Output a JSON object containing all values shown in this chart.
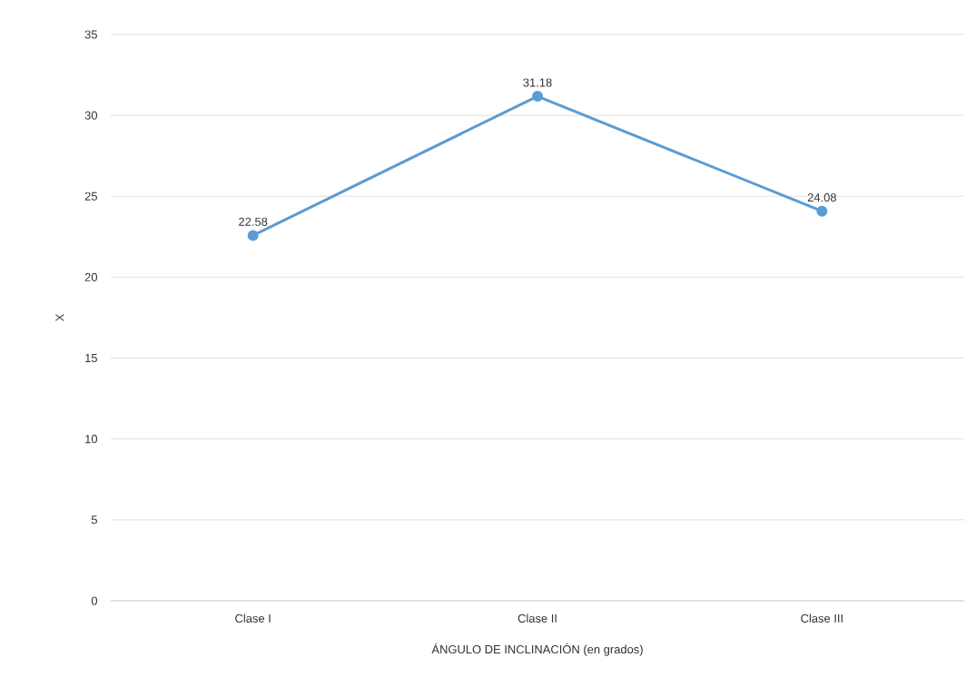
{
  "chart_data": {
    "type": "line",
    "xlabel": "ÁNGULO DE INCLINACIÓN (en grados)",
    "ylabel": "X",
    "categories": [
      "Clase I",
      "Clase II",
      "Clase III"
    ],
    "series": [
      {
        "color": "#5b9bd5",
        "values": [
          22.58,
          31.18,
          24.08
        ]
      }
    ],
    "ylim": [
      0,
      35
    ],
    "yticks": [
      0,
      5,
      10,
      15,
      20,
      25,
      30,
      35
    ],
    "grid": "y",
    "data_labels": true,
    "marker": "circle"
  }
}
